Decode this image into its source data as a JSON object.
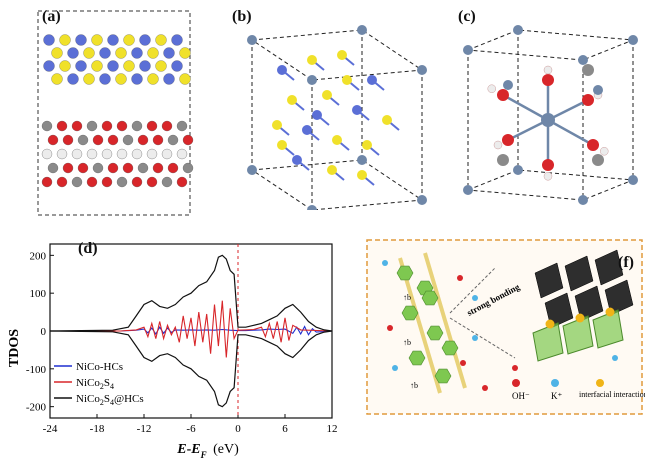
{
  "panels": {
    "a": {
      "label": "(a)"
    },
    "b": {
      "label": "(b)"
    },
    "c": {
      "label": "(c)"
    },
    "d": {
      "label": "(d)"
    },
    "f": {
      "label": "(f)"
    }
  },
  "colors": {
    "sulfur": "#f0e12a",
    "metal_blue": "#5b6fd6",
    "oxygen_red": "#d8262a",
    "carbon_grey": "#8a8a8a",
    "hydrogen_white": "#ececec",
    "nickel_slate": "#6f87a8",
    "tdos_nico_hcs": "#1f2fd0",
    "tdos_nico2s4": "#d8262a",
    "tdos_composite": "#111111",
    "hexagon_green": "#7ec850",
    "frame_orange": "#e09a3c"
  },
  "chart_data": {
    "type": "line",
    "ylabel": "TDOS",
    "xlabel_main": "E",
    "xlabel_sub_f": "F",
    "xlabel_unit": "(eV)",
    "xlim": [
      -24,
      12
    ],
    "ylim": [
      -230,
      230
    ],
    "xticks": [
      -24,
      -18,
      -12,
      -6,
      0,
      6,
      12
    ],
    "yticks": [
      -200,
      -100,
      0,
      100,
      200
    ],
    "fermi_line_x": 0,
    "legend_position": "bottom-left",
    "series": [
      {
        "name": "NiCo-HCs",
        "name_parts": [
          "NiCo-HCs",
          "",
          ""
        ],
        "color": "#1f2fd0",
        "x": [
          -24,
          -15,
          -13,
          -12,
          -11.5,
          -11,
          -10.5,
          -10,
          -9.5,
          -9,
          -8.5,
          -8,
          -7,
          -6,
          -5,
          -4,
          -3,
          -2,
          -1,
          0,
          1,
          2,
          3,
          4,
          5,
          6,
          7,
          7.5,
          8,
          8.5,
          9,
          9.5,
          10,
          12
        ],
        "y": [
          0,
          0,
          2,
          5,
          -5,
          8,
          -8,
          10,
          -6,
          8,
          -4,
          3,
          2,
          3,
          2,
          3,
          2,
          4,
          2,
          1,
          1,
          2,
          3,
          5,
          4,
          5,
          -6,
          10,
          -8,
          12,
          -10,
          6,
          -3,
          0
        ]
      },
      {
        "name": "NiCo2S4",
        "name_parts": [
          "NiCo",
          "2",
          "S",
          "4"
        ],
        "color": "#d8262a",
        "x": [
          -24,
          -15,
          -13,
          -12,
          -11.5,
          -11,
          -10.5,
          -10,
          -9.5,
          -9,
          -8.5,
          -8,
          -7.5,
          -7,
          -6.5,
          -6,
          -5.5,
          -5,
          -4.5,
          -4,
          -3.5,
          -3,
          -2.5,
          -2,
          -1.5,
          -1,
          -0.5,
          0,
          1,
          2,
          3,
          3.5,
          4,
          4.5,
          5,
          5.5,
          6,
          6.5,
          7,
          8,
          12
        ],
        "y": [
          0,
          0,
          3,
          10,
          -15,
          20,
          -20,
          25,
          -20,
          15,
          -10,
          10,
          -30,
          40,
          -20,
          35,
          -40,
          50,
          -30,
          45,
          -60,
          70,
          -40,
          80,
          -70,
          60,
          -20,
          2,
          3,
          4,
          10,
          -15,
          20,
          -20,
          25,
          -30,
          35,
          -25,
          15,
          3,
          0
        ]
      },
      {
        "name": "NiCo2S4@HCs",
        "name_parts": [
          "NiCo",
          "2",
          "S",
          "4",
          "@HCs"
        ],
        "color": "#111111",
        "x": [
          -24,
          -16,
          -14,
          -13,
          -12,
          -11,
          -10,
          -9,
          -8,
          -7,
          -6,
          -5,
          -4,
          -3,
          -2.5,
          -2,
          -1.5,
          -1,
          -0.5,
          0,
          1,
          2,
          3,
          4,
          5,
          6,
          7,
          8,
          9,
          10,
          11,
          12
        ],
        "y_upper": [
          0,
          2,
          10,
          40,
          70,
          80,
          65,
          60,
          70,
          90,
          100,
          120,
          130,
          160,
          195,
          200,
          190,
          160,
          150,
          10,
          10,
          15,
          20,
          30,
          40,
          60,
          70,
          50,
          25,
          10,
          3,
          0
        ],
        "y_lower": [
          0,
          -2,
          -10,
          -40,
          -70,
          -80,
          -65,
          -60,
          -70,
          -90,
          -100,
          -120,
          -130,
          -160,
          -195,
          -200,
          -190,
          -160,
          -150,
          -10,
          -10,
          -15,
          -20,
          -30,
          -40,
          -60,
          -70,
          -50,
          -25,
          -10,
          -3,
          0
        ]
      }
    ]
  },
  "panel_f": {
    "scheme_label_strong": "strong bonding",
    "arrow_labels": [
      "↑b",
      "↑b",
      "↑b"
    ],
    "legend": [
      {
        "label": "OH⁻",
        "color": "#d8262a"
      },
      {
        "label": "K⁺",
        "color": "#4fb3e6"
      },
      {
        "label": "interfacial interactions",
        "color": "#f0b417"
      }
    ]
  }
}
